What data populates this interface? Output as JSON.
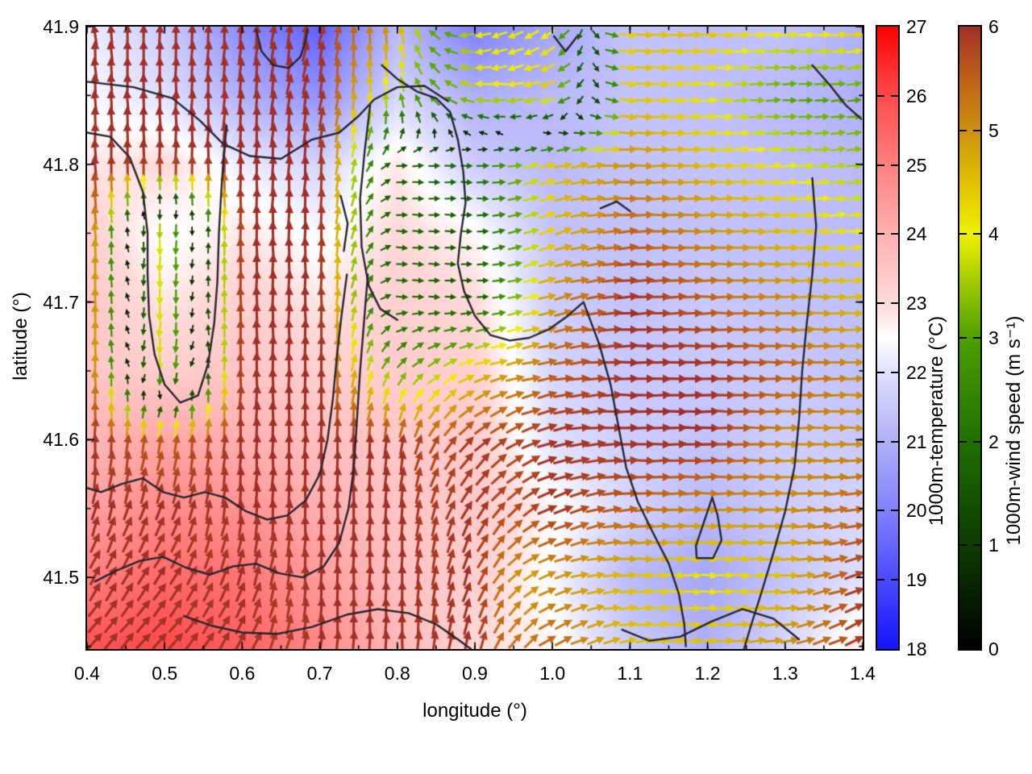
{
  "axes": {
    "xlabel": "longitude (°)",
    "ylabel": "latitude (°)",
    "xlim": [
      0.4,
      1.4
    ],
    "ylim": [
      41.448,
      41.9
    ],
    "xtick_labels": [
      "0.4",
      "0.5",
      "0.6",
      "0.7",
      "0.8",
      "0.9",
      "1.0",
      "1.1",
      "1.2",
      "1.3",
      "1.4"
    ],
    "xtick_values": [
      0.4,
      0.5,
      0.6,
      0.7,
      0.8,
      0.9,
      1.0,
      1.1,
      1.2,
      1.3,
      1.4
    ],
    "ytick_labels": [
      "41.5",
      "41.6",
      "41.7",
      "41.8",
      "41.9"
    ],
    "ytick_values": [
      41.5,
      41.6,
      41.7,
      41.8,
      41.9
    ],
    "x_minor_step": 0.05,
    "y_minor_step": 0.05
  },
  "colorbars": {
    "temperature": {
      "label": "1000m-temperature (°C)",
      "min": 18,
      "max": 27,
      "tick_labels": [
        "18",
        "19",
        "20",
        "21",
        "22",
        "23",
        "24",
        "25",
        "26",
        "27"
      ],
      "tick_values": [
        18,
        19,
        20,
        21,
        22,
        23,
        24,
        25,
        26,
        27
      ],
      "stops": [
        [
          18,
          "#1414ff"
        ],
        [
          19,
          "#4b4bff"
        ],
        [
          20,
          "#8080ff"
        ],
        [
          21,
          "#b0b0fa"
        ],
        [
          22,
          "#e0e0ff"
        ],
        [
          22.5,
          "#ffffff"
        ],
        [
          23,
          "#ffd8d8"
        ],
        [
          24,
          "#ffb0b0"
        ],
        [
          25,
          "#ff8080"
        ],
        [
          26,
          "#ff4b4b"
        ],
        [
          27,
          "#ff0000"
        ]
      ]
    },
    "wind": {
      "label": "1000m-wind speed (m s⁻¹)",
      "min": 0,
      "max": 6,
      "tick_labels": [
        "0",
        "1",
        "2",
        "3",
        "4",
        "5",
        "6"
      ],
      "tick_values": [
        0,
        1,
        2,
        3,
        4,
        5,
        6
      ],
      "stops": [
        [
          0,
          "#000000"
        ],
        [
          1,
          "#0d3d00"
        ],
        [
          2,
          "#1e7000"
        ],
        [
          3,
          "#4da000"
        ],
        [
          3.5,
          "#9cc800"
        ],
        [
          4,
          "#f0f000"
        ],
        [
          4.5,
          "#e0c000"
        ],
        [
          5,
          "#cc9010"
        ],
        [
          5.5,
          "#c06018"
        ],
        [
          6,
          "#a03028"
        ]
      ]
    }
  },
  "chart_data": {
    "type": "heatmap",
    "overlay": "quiver-vector-field-with-contours",
    "title": "",
    "xlabel": "longitude (°)",
    "ylabel": "latitude (°)",
    "grid_lon": [
      0.4,
      0.5,
      0.6,
      0.7,
      0.8,
      0.9,
      1.0,
      1.1,
      1.2,
      1.3,
      1.4
    ],
    "grid_lat_north_to_south": [
      41.9,
      41.85,
      41.8,
      41.75,
      41.7,
      41.65,
      41.6,
      41.55,
      41.5,
      41.45
    ],
    "temperature_c_rows_north_to_south": [
      [
        22.2,
        21.6,
        20.2,
        19.4,
        21.2,
        20.0,
        20.8,
        21.4,
        21.3,
        21.4,
        21.0
      ],
      [
        22.4,
        22.0,
        21.0,
        20.4,
        21.8,
        21.0,
        21.2,
        21.4,
        21.3,
        21.2,
        21.0
      ],
      [
        22.8,
        23.0,
        22.2,
        21.8,
        22.8,
        21.6,
        21.2,
        21.4,
        21.4,
        21.3,
        21.2
      ],
      [
        23.2,
        22.4,
        22.8,
        22.4,
        23.0,
        22.6,
        21.4,
        21.4,
        21.4,
        21.3,
        21.2
      ],
      [
        23.4,
        22.8,
        23.2,
        22.8,
        23.2,
        23.0,
        21.6,
        21.4,
        21.5,
        21.4,
        21.3
      ],
      [
        23.5,
        23.2,
        23.5,
        23.2,
        23.3,
        23.2,
        21.8,
        21.5,
        21.5,
        21.5,
        21.4
      ],
      [
        23.8,
        24.2,
        24.0,
        23.6,
        23.4,
        23.3,
        22.0,
        21.6,
        21.4,
        21.6,
        21.5
      ],
      [
        24.3,
        24.8,
        24.6,
        24.0,
        23.5,
        23.4,
        22.6,
        21.8,
        21.2,
        21.6,
        21.8
      ],
      [
        25.0,
        25.4,
        25.2,
        24.4,
        23.6,
        23.2,
        22.4,
        21.2,
        20.8,
        21.4,
        22.0
      ],
      [
        25.8,
        26.0,
        25.6,
        24.8,
        23.8,
        23.0,
        22.6,
        21.6,
        21.0,
        21.8,
        22.8
      ]
    ],
    "wind_dir_deg_ccw_from_east_rows_north_to_south": [
      [
        95,
        90,
        85,
        78,
        100,
        195,
        215,
        355,
        0,
        0,
        8
      ],
      [
        93,
        90,
        86,
        80,
        100,
        170,
        200,
        355,
        0,
        3,
        8
      ],
      [
        92,
        92,
        88,
        86,
        5,
        355,
        15,
        0,
        0,
        3,
        5
      ],
      [
        92,
        270,
        90,
        88,
        358,
        358,
        20,
        5,
        0,
        0,
        5
      ],
      [
        92,
        268,
        90,
        90,
        355,
        0,
        15,
        5,
        0,
        0,
        0
      ],
      [
        91,
        265,
        90,
        90,
        55,
        20,
        10,
        0,
        0,
        0,
        0
      ],
      [
        90,
        80,
        88,
        90,
        80,
        45,
        15,
        0,
        0,
        0,
        0
      ],
      [
        75,
        70,
        85,
        90,
        85,
        60,
        25,
        5,
        0,
        0,
        10
      ],
      [
        60,
        55,
        70,
        88,
        88,
        70,
        20,
        0,
        355,
        0,
        20
      ],
      [
        50,
        45,
        60,
        85,
        90,
        75,
        30,
        10,
        0,
        10,
        30
      ]
    ],
    "wind_speed_ms_rows_north_to_south": [
      [
        6,
        6,
        6,
        6,
        5,
        4,
        4,
        4.5,
        4.5,
        4,
        4.5
      ],
      [
        6,
        6,
        6,
        6,
        3.5,
        4,
        4.5,
        4.5,
        4,
        3,
        3
      ],
      [
        6,
        6,
        6,
        6,
        1.6,
        2,
        4.5,
        5,
        4.5,
        4,
        3.5
      ],
      [
        6,
        4.5,
        6,
        6,
        1.8,
        1.5,
        4.5,
        5.5,
        5,
        4.5,
        4
      ],
      [
        6,
        4.5,
        6,
        6,
        2,
        1.5,
        5,
        6,
        5.5,
        5,
        4.5
      ],
      [
        6,
        4.5,
        6,
        6,
        3,
        4.5,
        5.5,
        6,
        6,
        5.5,
        5
      ],
      [
        6,
        5.5,
        6,
        6,
        6,
        6,
        6,
        6,
        6,
        5,
        5
      ],
      [
        6,
        6,
        6,
        6,
        6,
        6,
        6,
        5.5,
        5,
        5,
        5.5
      ],
      [
        6,
        6,
        6,
        6,
        6,
        6,
        5,
        4.5,
        4,
        4.5,
        6
      ],
      [
        6,
        6,
        6,
        6,
        6,
        6,
        5.5,
        4.5,
        4.5,
        5,
        6
      ]
    ],
    "contours_lonlat": [
      [
        [
          0.4,
          41.86
        ],
        [
          0.46,
          41.856
        ],
        [
          0.51,
          41.848
        ],
        [
          0.545,
          41.832
        ],
        [
          0.575,
          41.815
        ],
        [
          0.61,
          41.806
        ],
        [
          0.65,
          41.804
        ],
        [
          0.69,
          41.818
        ],
        [
          0.725,
          41.823
        ],
        [
          0.75,
          41.835
        ],
        [
          0.77,
          41.847
        ],
        [
          0.8,
          41.856
        ],
        [
          0.835,
          41.857
        ],
        [
          0.865,
          41.846
        ]
      ],
      [
        [
          0.4,
          41.823
        ],
        [
          0.43,
          41.82
        ],
        [
          0.455,
          41.805
        ],
        [
          0.472,
          41.78
        ],
        [
          0.478,
          41.75
        ],
        [
          0.478,
          41.72
        ],
        [
          0.48,
          41.69
        ],
        [
          0.487,
          41.662
        ],
        [
          0.5,
          41.64
        ],
        [
          0.52,
          41.627
        ],
        [
          0.543,
          41.632
        ],
        [
          0.556,
          41.655
        ],
        [
          0.564,
          41.685
        ],
        [
          0.568,
          41.715
        ],
        [
          0.57,
          41.75
        ],
        [
          0.573,
          41.78
        ],
        [
          0.576,
          41.805
        ],
        [
          0.58,
          41.828
        ]
      ],
      [
        [
          0.78,
          41.872
        ],
        [
          0.8,
          41.862
        ],
        [
          0.825,
          41.853
        ],
        [
          0.85,
          41.848
        ],
        [
          0.868,
          41.838
        ],
        [
          0.878,
          41.818
        ],
        [
          0.885,
          41.795
        ],
        [
          0.888,
          41.772
        ],
        [
          0.882,
          41.75
        ],
        [
          0.878,
          41.728
        ],
        [
          0.886,
          41.708
        ],
        [
          0.9,
          41.69
        ],
        [
          0.92,
          41.676
        ],
        [
          0.945,
          41.672
        ],
        [
          0.97,
          41.674
        ],
        [
          0.995,
          41.68
        ],
        [
          1.02,
          41.69
        ],
        [
          1.04,
          41.7
        ],
        [
          1.06,
          41.67
        ],
        [
          1.075,
          41.64
        ],
        [
          1.085,
          41.61
        ],
        [
          1.095,
          41.58
        ],
        [
          1.11,
          41.555
        ],
        [
          1.13,
          41.532
        ],
        [
          1.15,
          41.51
        ],
        [
          1.163,
          41.488
        ],
        [
          1.17,
          41.466
        ],
        [
          1.172,
          41.45
        ]
      ],
      [
        [
          0.765,
          41.843
        ],
        [
          0.758,
          41.81
        ],
        [
          0.752,
          41.775
        ],
        [
          0.754,
          41.74
        ],
        [
          0.763,
          41.712
        ],
        [
          0.778,
          41.695
        ],
        [
          0.8,
          41.687
        ]
      ],
      [
        [
          0.735,
          41.72
        ],
        [
          0.728,
          41.69
        ],
        [
          0.722,
          41.66
        ],
        [
          0.717,
          41.63
        ],
        [
          0.71,
          41.6
        ],
        [
          0.7,
          41.575
        ],
        [
          0.682,
          41.556
        ],
        [
          0.658,
          41.545
        ],
        [
          0.632,
          41.542
        ],
        [
          0.605,
          41.548
        ],
        [
          0.578,
          41.558
        ],
        [
          0.552,
          41.562
        ],
        [
          0.525,
          41.558
        ],
        [
          0.498,
          41.562
        ],
        [
          0.472,
          41.572
        ],
        [
          0.445,
          41.568
        ],
        [
          0.418,
          41.562
        ],
        [
          0.4,
          41.565
        ]
      ],
      [
        [
          0.762,
          41.72
        ],
        [
          0.757,
          41.685
        ],
        [
          0.752,
          41.65
        ],
        [
          0.748,
          41.615
        ],
        [
          0.744,
          41.58
        ],
        [
          0.737,
          41.55
        ],
        [
          0.725,
          41.525
        ],
        [
          0.705,
          41.508
        ],
        [
          0.678,
          41.5
        ],
        [
          0.648,
          41.503
        ],
        [
          0.618,
          41.51
        ],
        [
          0.588,
          41.508
        ],
        [
          0.558,
          41.502
        ],
        [
          0.528,
          41.507
        ],
        [
          0.498,
          41.515
        ],
        [
          0.468,
          41.512
        ],
        [
          0.438,
          41.505
        ],
        [
          0.41,
          41.497
        ]
      ],
      [
        [
          0.525,
          41.472
        ],
        [
          0.56,
          41.465
        ],
        [
          0.6,
          41.46
        ],
        [
          0.645,
          41.459
        ],
        [
          0.69,
          41.464
        ],
        [
          0.735,
          41.473
        ],
        [
          0.775,
          41.477
        ],
        [
          0.815,
          41.474
        ],
        [
          0.85,
          41.466
        ],
        [
          0.878,
          41.455
        ],
        [
          0.895,
          41.448
        ]
      ],
      [
        [
          1.335,
          41.79
        ],
        [
          1.34,
          41.755
        ],
        [
          1.335,
          41.72
        ],
        [
          1.328,
          41.685
        ],
        [
          1.322,
          41.65
        ],
        [
          1.318,
          41.615
        ],
        [
          1.312,
          41.58
        ],
        [
          1.3,
          41.548
        ],
        [
          1.285,
          41.518
        ],
        [
          1.27,
          41.49
        ],
        [
          1.256,
          41.465
        ],
        [
          1.247,
          41.448
        ]
      ],
      [
        [
          1.335,
          41.872
        ],
        [
          1.357,
          41.858
        ],
        [
          1.378,
          41.843
        ],
        [
          1.398,
          41.833
        ]
      ],
      [
        [
          1.185,
          41.523
        ],
        [
          1.206,
          41.558
        ],
        [
          1.213,
          41.545
        ],
        [
          1.218,
          41.527
        ],
        [
          1.207,
          41.514
        ],
        [
          1.186,
          41.514
        ],
        [
          1.185,
          41.523
        ]
      ],
      [
        [
          1.002,
          41.893
        ],
        [
          1.017,
          41.882
        ],
        [
          1.032,
          41.893
        ]
      ],
      [
        [
          0.618,
          41.898
        ],
        [
          0.625,
          41.882
        ],
        [
          0.64,
          41.872
        ],
        [
          0.66,
          41.87
        ],
        [
          0.675,
          41.878
        ],
        [
          0.682,
          41.89
        ],
        [
          0.684,
          41.898
        ]
      ],
      [
        [
          1.09,
          41.462
        ],
        [
          1.125,
          41.454
        ],
        [
          1.165,
          41.457
        ],
        [
          1.205,
          41.468
        ],
        [
          1.245,
          41.477
        ],
        [
          1.285,
          41.47
        ],
        [
          1.318,
          41.455
        ]
      ],
      [
        [
          0.727,
          41.777
        ],
        [
          0.736,
          41.757
        ],
        [
          0.731,
          41.737
        ]
      ],
      [
        [
          1.062,
          41.768
        ],
        [
          1.083,
          41.773
        ],
        [
          1.1,
          41.766
        ]
      ]
    ],
    "contour_color": "#26262e"
  }
}
